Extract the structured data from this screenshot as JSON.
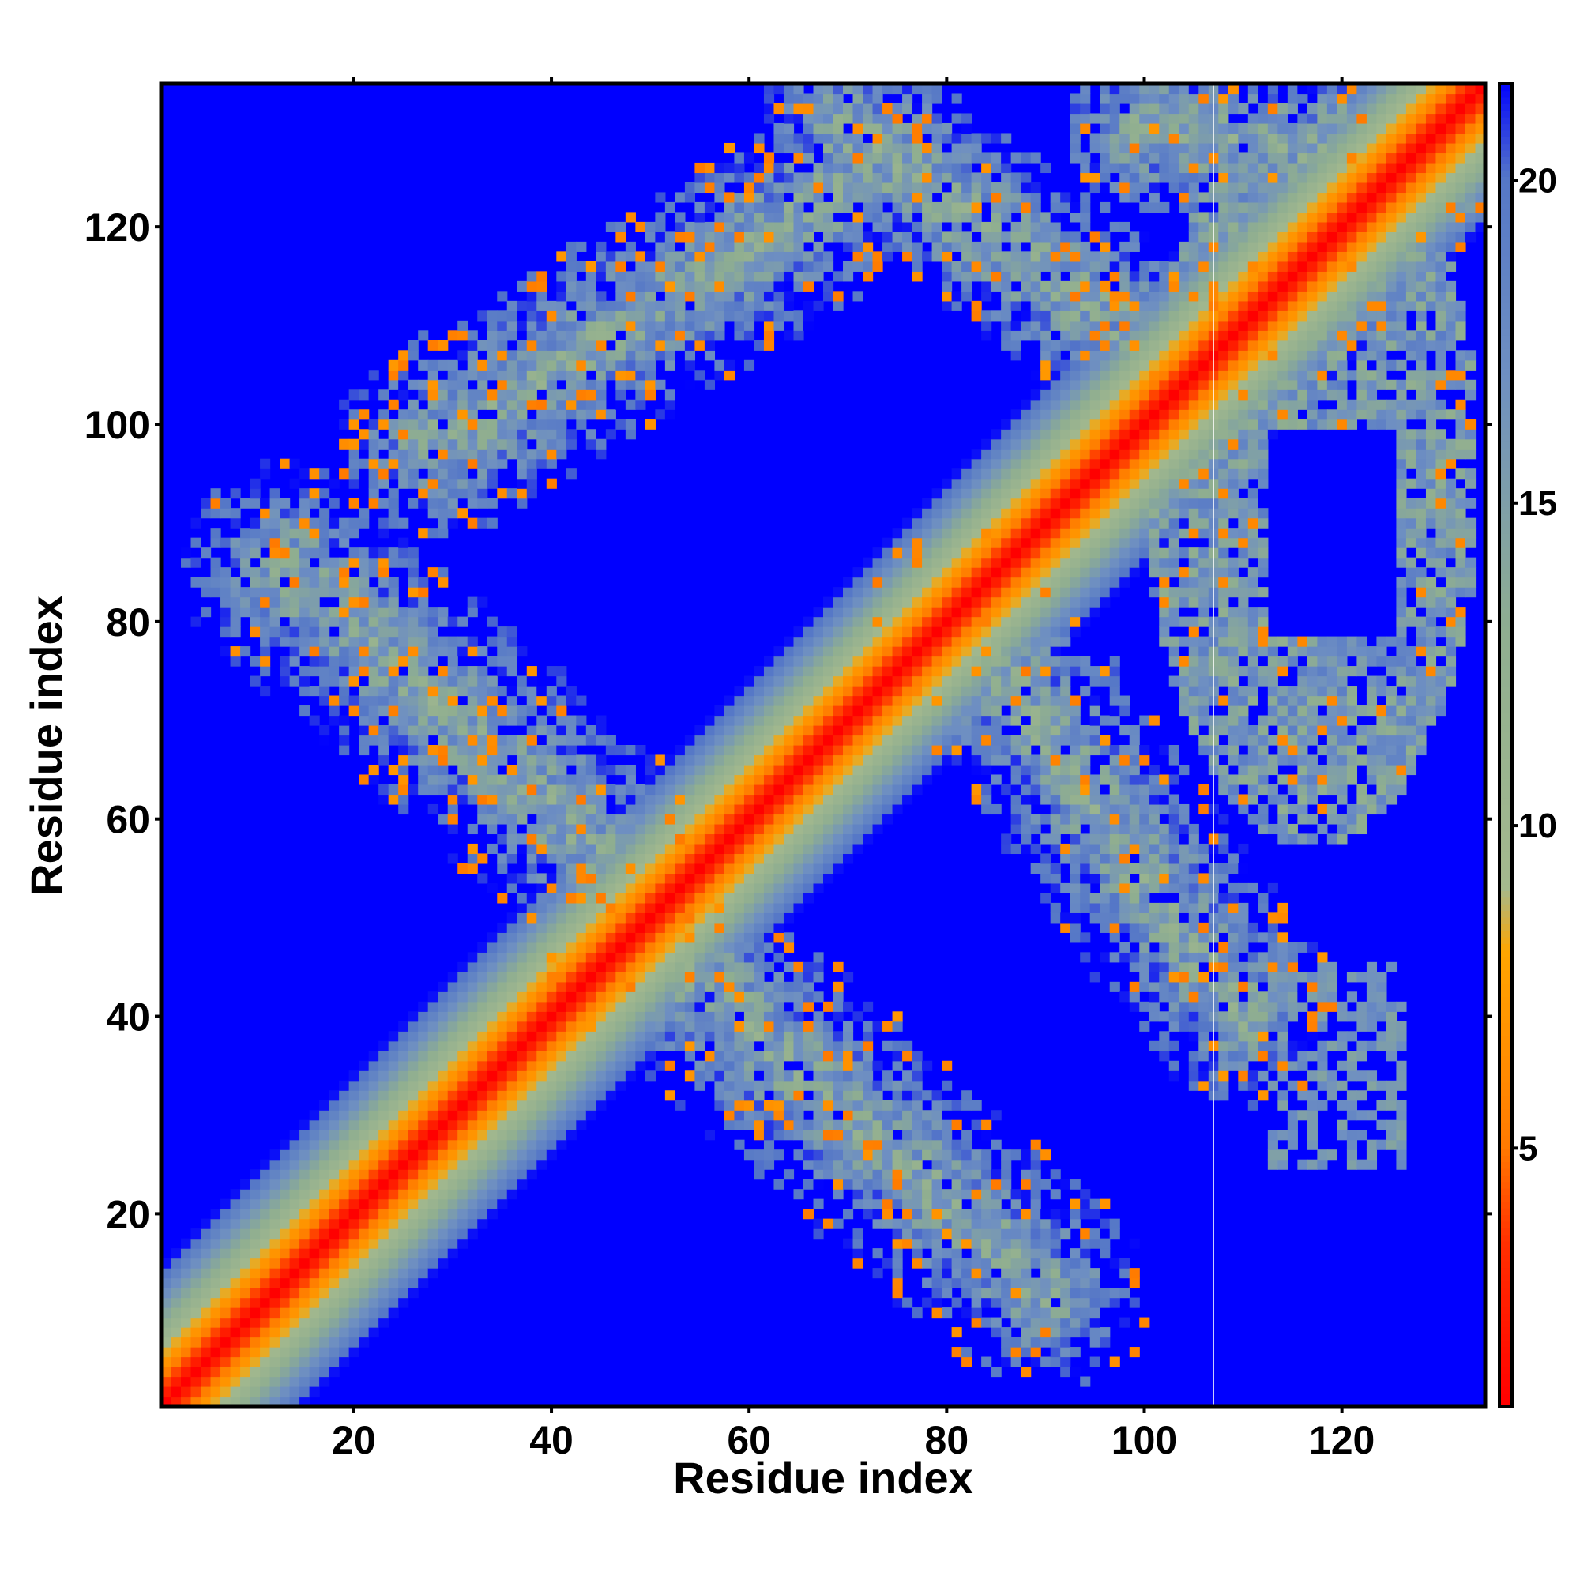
{
  "chart_data": {
    "type": "heatmap",
    "title": "",
    "xlabel": "Residue index",
    "ylabel": "Residue index",
    "n_residues": 134,
    "xlim": [
      1,
      134
    ],
    "ylim": [
      1,
      134
    ],
    "x_ticks": [
      20,
      40,
      60,
      80,
      100,
      120
    ],
    "y_ticks": [
      20,
      40,
      60,
      80,
      100,
      120
    ],
    "colorbar": {
      "range": [
        1,
        21.5
      ],
      "ticks": [
        5,
        10,
        15,
        20
      ],
      "stops": [
        {
          "value": 1,
          "color": "#ff0000"
        },
        {
          "value": 3.5,
          "color": "#ff3000"
        },
        {
          "value": 5,
          "color": "#ff7a00"
        },
        {
          "value": 8,
          "color": "#ffa500"
        },
        {
          "value": 9,
          "color": "#a4b98e"
        },
        {
          "value": 13,
          "color": "#8fae90"
        },
        {
          "value": 17,
          "color": "#6e8fc2"
        },
        {
          "value": 20,
          "color": "#5577c7"
        },
        {
          "value": 21.5,
          "color": "#0000ff"
        }
      ]
    },
    "cutoff_value": 21.5,
    "cutoff_color": "#0000ff",
    "missing_residue_x": 107,
    "regions": {
      "diagonal": "distance ≈ 1 + 1.1·|i−j| for |i−j| ≤ 14",
      "contact_bands": [
        {
          "name": "upper-left band 1",
          "from": [
            13,
            86
          ],
          "to": [
            50,
            52
          ]
        },
        {
          "name": "upper-left band 2",
          "from": [
            28,
            98
          ],
          "to": [
            72,
            125
          ]
        },
        {
          "name": "lower-right band 1",
          "from": [
            50,
            48
          ],
          "to": [
            90,
            12
          ]
        },
        {
          "name": "lower-right band 2",
          "from": [
            82,
            80
          ],
          "to": [
            110,
            40
          ]
        },
        {
          "name": "upper-right block",
          "from": [
            100,
            130
          ],
          "to": [
            134,
            60
          ]
        },
        {
          "name": "right sparse block",
          "from": [
            113,
            45
          ],
          "to": [
            125,
            30
          ]
        }
      ]
    }
  }
}
